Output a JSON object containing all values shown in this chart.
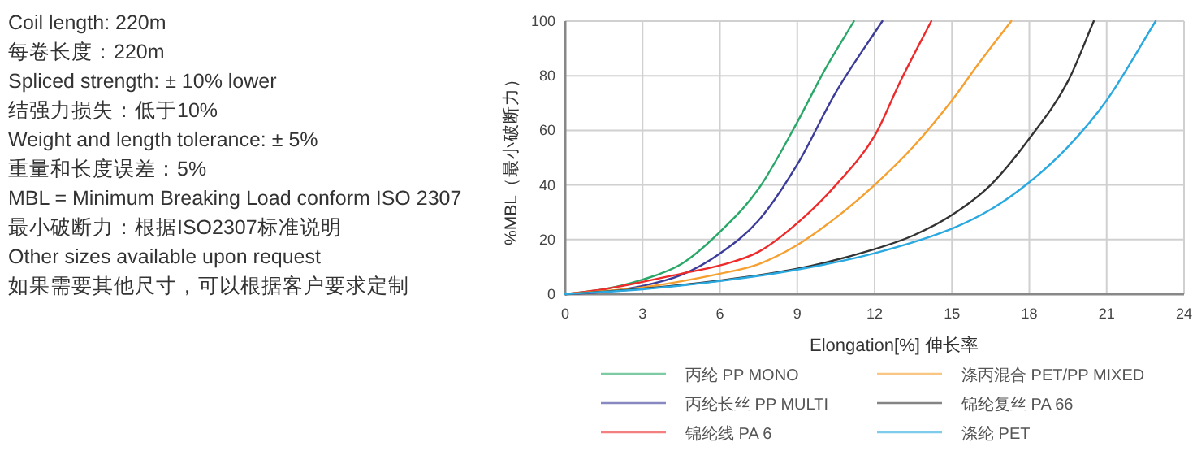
{
  "chart_data": {
    "type": "line",
    "xlabel": "Elongation[%]  伸长率",
    "ylabel": "%MBL（最小破断力）",
    "xlim": [
      0,
      24
    ],
    "xticks": [
      0,
      3,
      6,
      9,
      12,
      15,
      18,
      21,
      24
    ],
    "ylim": [
      0,
      100
    ],
    "yticks": [
      0,
      20,
      40,
      60,
      80,
      100
    ],
    "grid": true,
    "legend": "bottom",
    "marker": "none",
    "line_style": "solid",
    "annotations": [
      "Coil length: 220m",
      "每卷长度：220m",
      "Spliced strength: ± 10% lower",
      "结强力损失：低于10%",
      "Weight and length tolerance: ± 5%",
      "重量和长度误差：5%",
      "MBL = Minimum Breaking Load conform ISO 2307",
      "最小破断力：根据ISO2307标准说明",
      "Other sizes available upon request",
      "如果需要其他尺寸，可以根据客户要求定制"
    ],
    "series": [
      {
        "name": "丙纶 PP MONO",
        "color": "#2aa86a",
        "x": [
          0,
          1.5,
          3,
          4.5,
          6,
          7.5,
          9,
          10,
          11.2
        ],
        "values": [
          0,
          1.8,
          5.3,
          11,
          22.8,
          38.6,
          63,
          81,
          100
        ]
      },
      {
        "name": "丙纶长丝 PP MULTI",
        "color": "#3c3c9a",
        "x": [
          0,
          1.5,
          3,
          4.5,
          6,
          7.5,
          9,
          10.5,
          12.3
        ],
        "values": [
          0,
          0.8,
          3,
          7,
          14.9,
          27,
          47.5,
          74,
          100
        ]
      },
      {
        "name": "锦纶线 PA 6",
        "color": "#ee2b2b",
        "x": [
          0,
          1.5,
          3,
          4.5,
          6,
          7.5,
          9,
          10.5,
          12,
          13,
          14.2
        ],
        "values": [
          0,
          1.8,
          4.5,
          7.5,
          10.5,
          15.5,
          26,
          40,
          58,
          78,
          100
        ]
      },
      {
        "name": "涤丙混合 PET/PP MIXED",
        "color": "#f5a030",
        "x": [
          0,
          3,
          6,
          7.5,
          9,
          10.5,
          12,
          13.5,
          15,
          16,
          17.3
        ],
        "values": [
          0,
          2.5,
          7.5,
          11,
          18,
          28,
          40,
          54,
          71,
          84,
          100
        ]
      },
      {
        "name": "锦纶复丝 PA 66",
        "color": "#333333",
        "x": [
          0,
          3,
          6,
          9,
          12,
          13.5,
          15,
          16.5,
          18,
          19.5,
          20.5
        ],
        "values": [
          0,
          2,
          5,
          9.3,
          16.5,
          21.5,
          29,
          40,
          57,
          78,
          100
        ]
      },
      {
        "name": "涤纶 PET",
        "color": "#2aa9e0",
        "x": [
          0,
          3,
          6,
          9,
          12,
          15,
          16.5,
          18,
          19.5,
          21,
          22.9
        ],
        "values": [
          0,
          1.8,
          4.8,
          9,
          15,
          24,
          31,
          41,
          54,
          71,
          100
        ]
      }
    ]
  }
}
